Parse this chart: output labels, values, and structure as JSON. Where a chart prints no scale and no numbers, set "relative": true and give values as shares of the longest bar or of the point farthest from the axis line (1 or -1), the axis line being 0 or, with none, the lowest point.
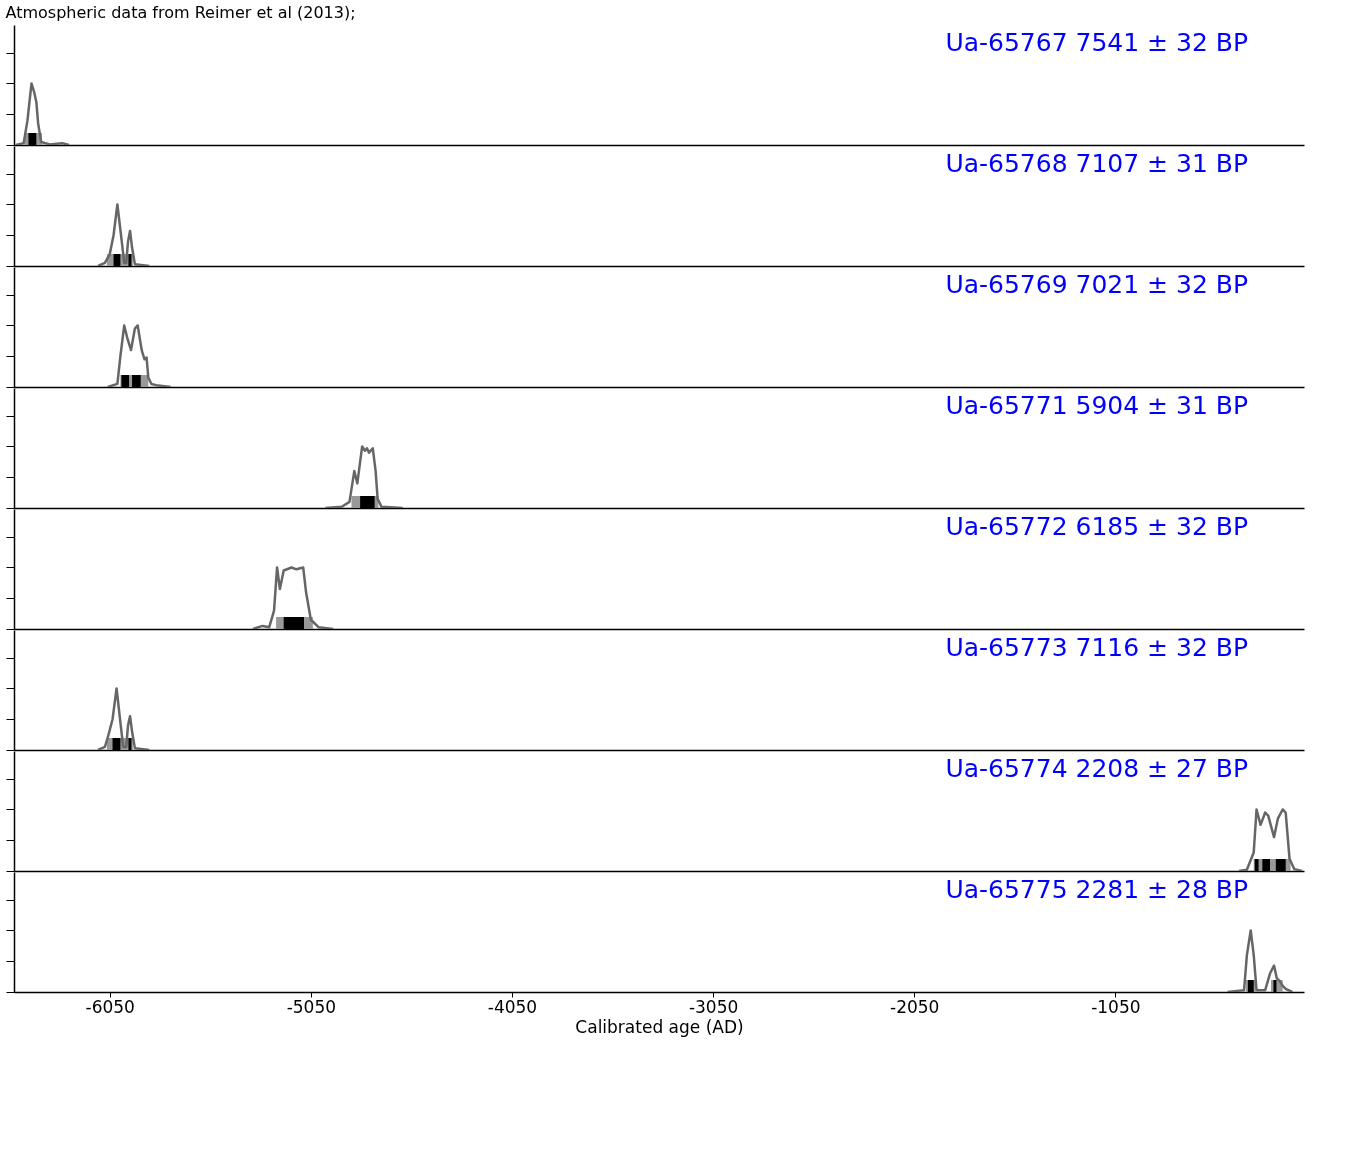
{
  "chart_data": [
    {
      "type": "line",
      "relative": true,
      "title": "Atmospheric data from Reimer et al (2013);",
      "annotations": [
        "Ua-65767 7541 ± 32 BP"
      ],
      "xlim": [
        -6526,
        -112
      ],
      "xticks": [
        -6050,
        -5050,
        -4050,
        -3050,
        -2050,
        -1050
      ],
      "tick_labels": false,
      "series": [
        {
          "color": "#666666",
          "x": [
            -6516,
            -6478,
            -6459,
            -6439,
            -6425,
            -6415,
            -6406,
            -6391,
            -6348,
            -6286,
            -6252
          ],
          "values": [
            0,
            0.03,
            0.4,
            1.0,
            0.85,
            0.7,
            0.35,
            0.05,
            0.01,
            0.03,
            0
          ]
        }
      ],
      "bands": [
        {
          "axis": "x",
          "from": -6473,
          "to": -6387,
          "color": "#999999"
        },
        {
          "axis": "x",
          "from": -6454,
          "to": -6415,
          "color": "#000000"
        }
      ]
    },
    {
      "type": "line",
      "relative": true,
      "annotations": [
        "Ua-65768 7107 ± 31 BP"
      ],
      "xlim": [
        -6526,
        -112
      ],
      "xticks": [
        -6050,
        -5050,
        -4050,
        -3050,
        -2050,
        -1050
      ],
      "tick_labels": false,
      "series": [
        {
          "color": "#666666",
          "x": [
            -6108,
            -6074,
            -6050,
            -6031,
            -6012,
            -5992,
            -5978,
            -5968,
            -5959,
            -5949,
            -5939,
            -5925,
            -5853
          ],
          "values": [
            0,
            0.05,
            0.19,
            0.5,
            1.0,
            0.45,
            0.05,
            0.05,
            0.4,
            0.57,
            0.3,
            0.03,
            0
          ]
        }
      ],
      "bands": [
        {
          "axis": "x",
          "from": -6064,
          "to": -5935,
          "color": "#999999"
        },
        {
          "axis": "x",
          "from": -6031,
          "to": -5997,
          "color": "#000000"
        },
        {
          "axis": "x",
          "from": -5957,
          "to": -5942,
          "color": "#000000"
        }
      ]
    },
    {
      "type": "line",
      "relative": true,
      "annotations": [
        "Ua-65769 7021 ± 32 BP"
      ],
      "xlim": [
        -6526,
        -112
      ],
      "xticks": [
        -6050,
        -5050,
        -4050,
        -3050,
        -2050,
        -1050
      ],
      "tick_labels": false,
      "series": [
        {
          "color": "#666666",
          "x": [
            -6060,
            -6012,
            -5997,
            -5978,
            -5963,
            -5944,
            -5925,
            -5911,
            -5891,
            -5877,
            -5867,
            -5858,
            -5843,
            -5819,
            -5747
          ],
          "values": [
            0,
            0.05,
            0.5,
            1.0,
            0.8,
            0.6,
            0.95,
            1.0,
            0.6,
            0.45,
            0.48,
            0.15,
            0.05,
            0.03,
            0
          ]
        }
      ],
      "bands": [
        {
          "axis": "x",
          "from": -5997,
          "to": -5858,
          "color": "#999999"
        },
        {
          "axis": "x",
          "from": -5992,
          "to": -5954,
          "color": "#000000"
        },
        {
          "axis": "x",
          "from": -5939,
          "to": -5896,
          "color": "#000000"
        }
      ]
    },
    {
      "type": "line",
      "relative": true,
      "annotations": [
        "Ua-65771 5904 ± 31 BP"
      ],
      "xlim": [
        -6526,
        -112
      ],
      "xticks": [
        -6050,
        -5050,
        -4050,
        -3050,
        -2050,
        -1050
      ],
      "tick_labels": false,
      "series": [
        {
          "color": "#666666",
          "x": [
            -4978,
            -4896,
            -4858,
            -4834,
            -4819,
            -4795,
            -4781,
            -4771,
            -4761,
            -4742,
            -4728,
            -4718,
            -4699,
            -4593
          ],
          "values": [
            0,
            0.02,
            0.1,
            0.6,
            0.4,
            1.0,
            0.93,
            0.97,
            0.9,
            0.97,
            0.6,
            0.15,
            0.02,
            0
          ]
        }
      ],
      "bands": [
        {
          "axis": "x",
          "from": -4848,
          "to": -4714,
          "color": "#999999"
        },
        {
          "axis": "x",
          "from": -4805,
          "to": -4733,
          "color": "#000000"
        }
      ]
    },
    {
      "type": "line",
      "relative": true,
      "annotations": [
        "Ua-65772 6185 ± 32 BP"
      ],
      "xlim": [
        -6526,
        -112
      ],
      "xticks": [
        -6050,
        -5050,
        -4050,
        -3050,
        -2050,
        -1050
      ],
      "tick_labels": false,
      "series": [
        {
          "color": "#666666",
          "x": [
            -5338,
            -5290,
            -5257,
            -5233,
            -5218,
            -5204,
            -5185,
            -5146,
            -5122,
            -5088,
            -5074,
            -5050,
            -5012,
            -4939
          ],
          "values": [
            0,
            0.05,
            0.03,
            0.3,
            1.0,
            0.65,
            0.95,
            1.0,
            0.97,
            1.0,
            0.6,
            0.15,
            0.03,
            0
          ]
        }
      ],
      "bands": [
        {
          "axis": "x",
          "from": -5223,
          "to": -5040,
          "color": "#999999"
        },
        {
          "axis": "x",
          "from": -5185,
          "to": -5084,
          "color": "#000000"
        }
      ]
    },
    {
      "type": "line",
      "relative": true,
      "annotations": [
        "Ua-65773 7116 ± 32 BP"
      ],
      "xlim": [
        -6526,
        -112
      ],
      "xticks": [
        -6050,
        -5050,
        -4050,
        -3050,
        -2050,
        -1050
      ],
      "tick_labels": false,
      "series": [
        {
          "color": "#666666",
          "x": [
            -6108,
            -6074,
            -6060,
            -6036,
            -6016,
            -5997,
            -5983,
            -5968,
            -5959,
            -5949,
            -5939,
            -5925,
            -5853
          ],
          "values": [
            0,
            0.05,
            0.2,
            0.5,
            1.0,
            0.45,
            0.05,
            0.05,
            0.4,
            0.55,
            0.3,
            0.03,
            0
          ]
        }
      ],
      "bands": [
        {
          "axis": "x",
          "from": -6064,
          "to": -5935,
          "color": "#999999"
        },
        {
          "axis": "x",
          "from": -6036,
          "to": -5997,
          "color": "#000000"
        },
        {
          "axis": "x",
          "from": -5957,
          "to": -5942,
          "color": "#000000"
        }
      ]
    },
    {
      "type": "line",
      "relative": true,
      "annotations": [
        "Ua-65774 2208 ± 27 BP"
      ],
      "xlim": [
        -6526,
        -112
      ],
      "xticks": [
        -6050,
        -5050,
        -4050,
        -3050,
        -2050,
        -1050
      ],
      "tick_labels": false,
      "series": [
        {
          "color": "#666666",
          "x": [
            -435,
            -396,
            -362,
            -348,
            -328,
            -305,
            -290,
            -261,
            -242,
            -218,
            -203,
            -184,
            -160,
            -122
          ],
          "values": [
            0,
            0.02,
            0.3,
            1.0,
            0.75,
            0.95,
            0.9,
            0.55,
            0.85,
            1.0,
            0.95,
            0.2,
            0.03,
            0
          ]
        }
      ],
      "bands": [
        {
          "axis": "x",
          "from": -362,
          "to": -179,
          "color": "#999999"
        },
        {
          "axis": "x",
          "from": -357,
          "to": -338,
          "color": "#000000"
        },
        {
          "axis": "x",
          "from": -319,
          "to": -281,
          "color": "#000000"
        },
        {
          "axis": "x",
          "from": -252,
          "to": -203,
          "color": "#000000"
        }
      ]
    },
    {
      "type": "line",
      "relative": true,
      "annotations": [
        "Ua-65775 2281 ± 28 BP"
      ],
      "xlabel": "Calibrated age (AD)",
      "xlim": [
        -6526,
        -112
      ],
      "xticks": [
        -6050,
        -5050,
        -4050,
        -3050,
        -2050,
        -1050
      ],
      "tick_labels": "x",
      "series": [
        {
          "color": "#666666",
          "x": [
            -492,
            -410,
            -396,
            -377,
            -362,
            -348,
            -305,
            -281,
            -261,
            -247,
            -233,
            -218,
            -203,
            -170
          ],
          "values": [
            0,
            0.03,
            0.6,
            1.0,
            0.6,
            0.03,
            0.03,
            0.3,
            0.43,
            0.22,
            0.18,
            0.1,
            0.05,
            0
          ]
        }
      ],
      "bands": [
        {
          "axis": "x",
          "from": -401,
          "to": -353,
          "color": "#999999"
        },
        {
          "axis": "x",
          "from": -276,
          "to": -218,
          "color": "#999999"
        },
        {
          "axis": "x",
          "from": -391,
          "to": -362,
          "color": "#000000"
        },
        {
          "axis": "x",
          "from": -264,
          "to": -249,
          "color": "#000000"
        }
      ]
    }
  ]
}
